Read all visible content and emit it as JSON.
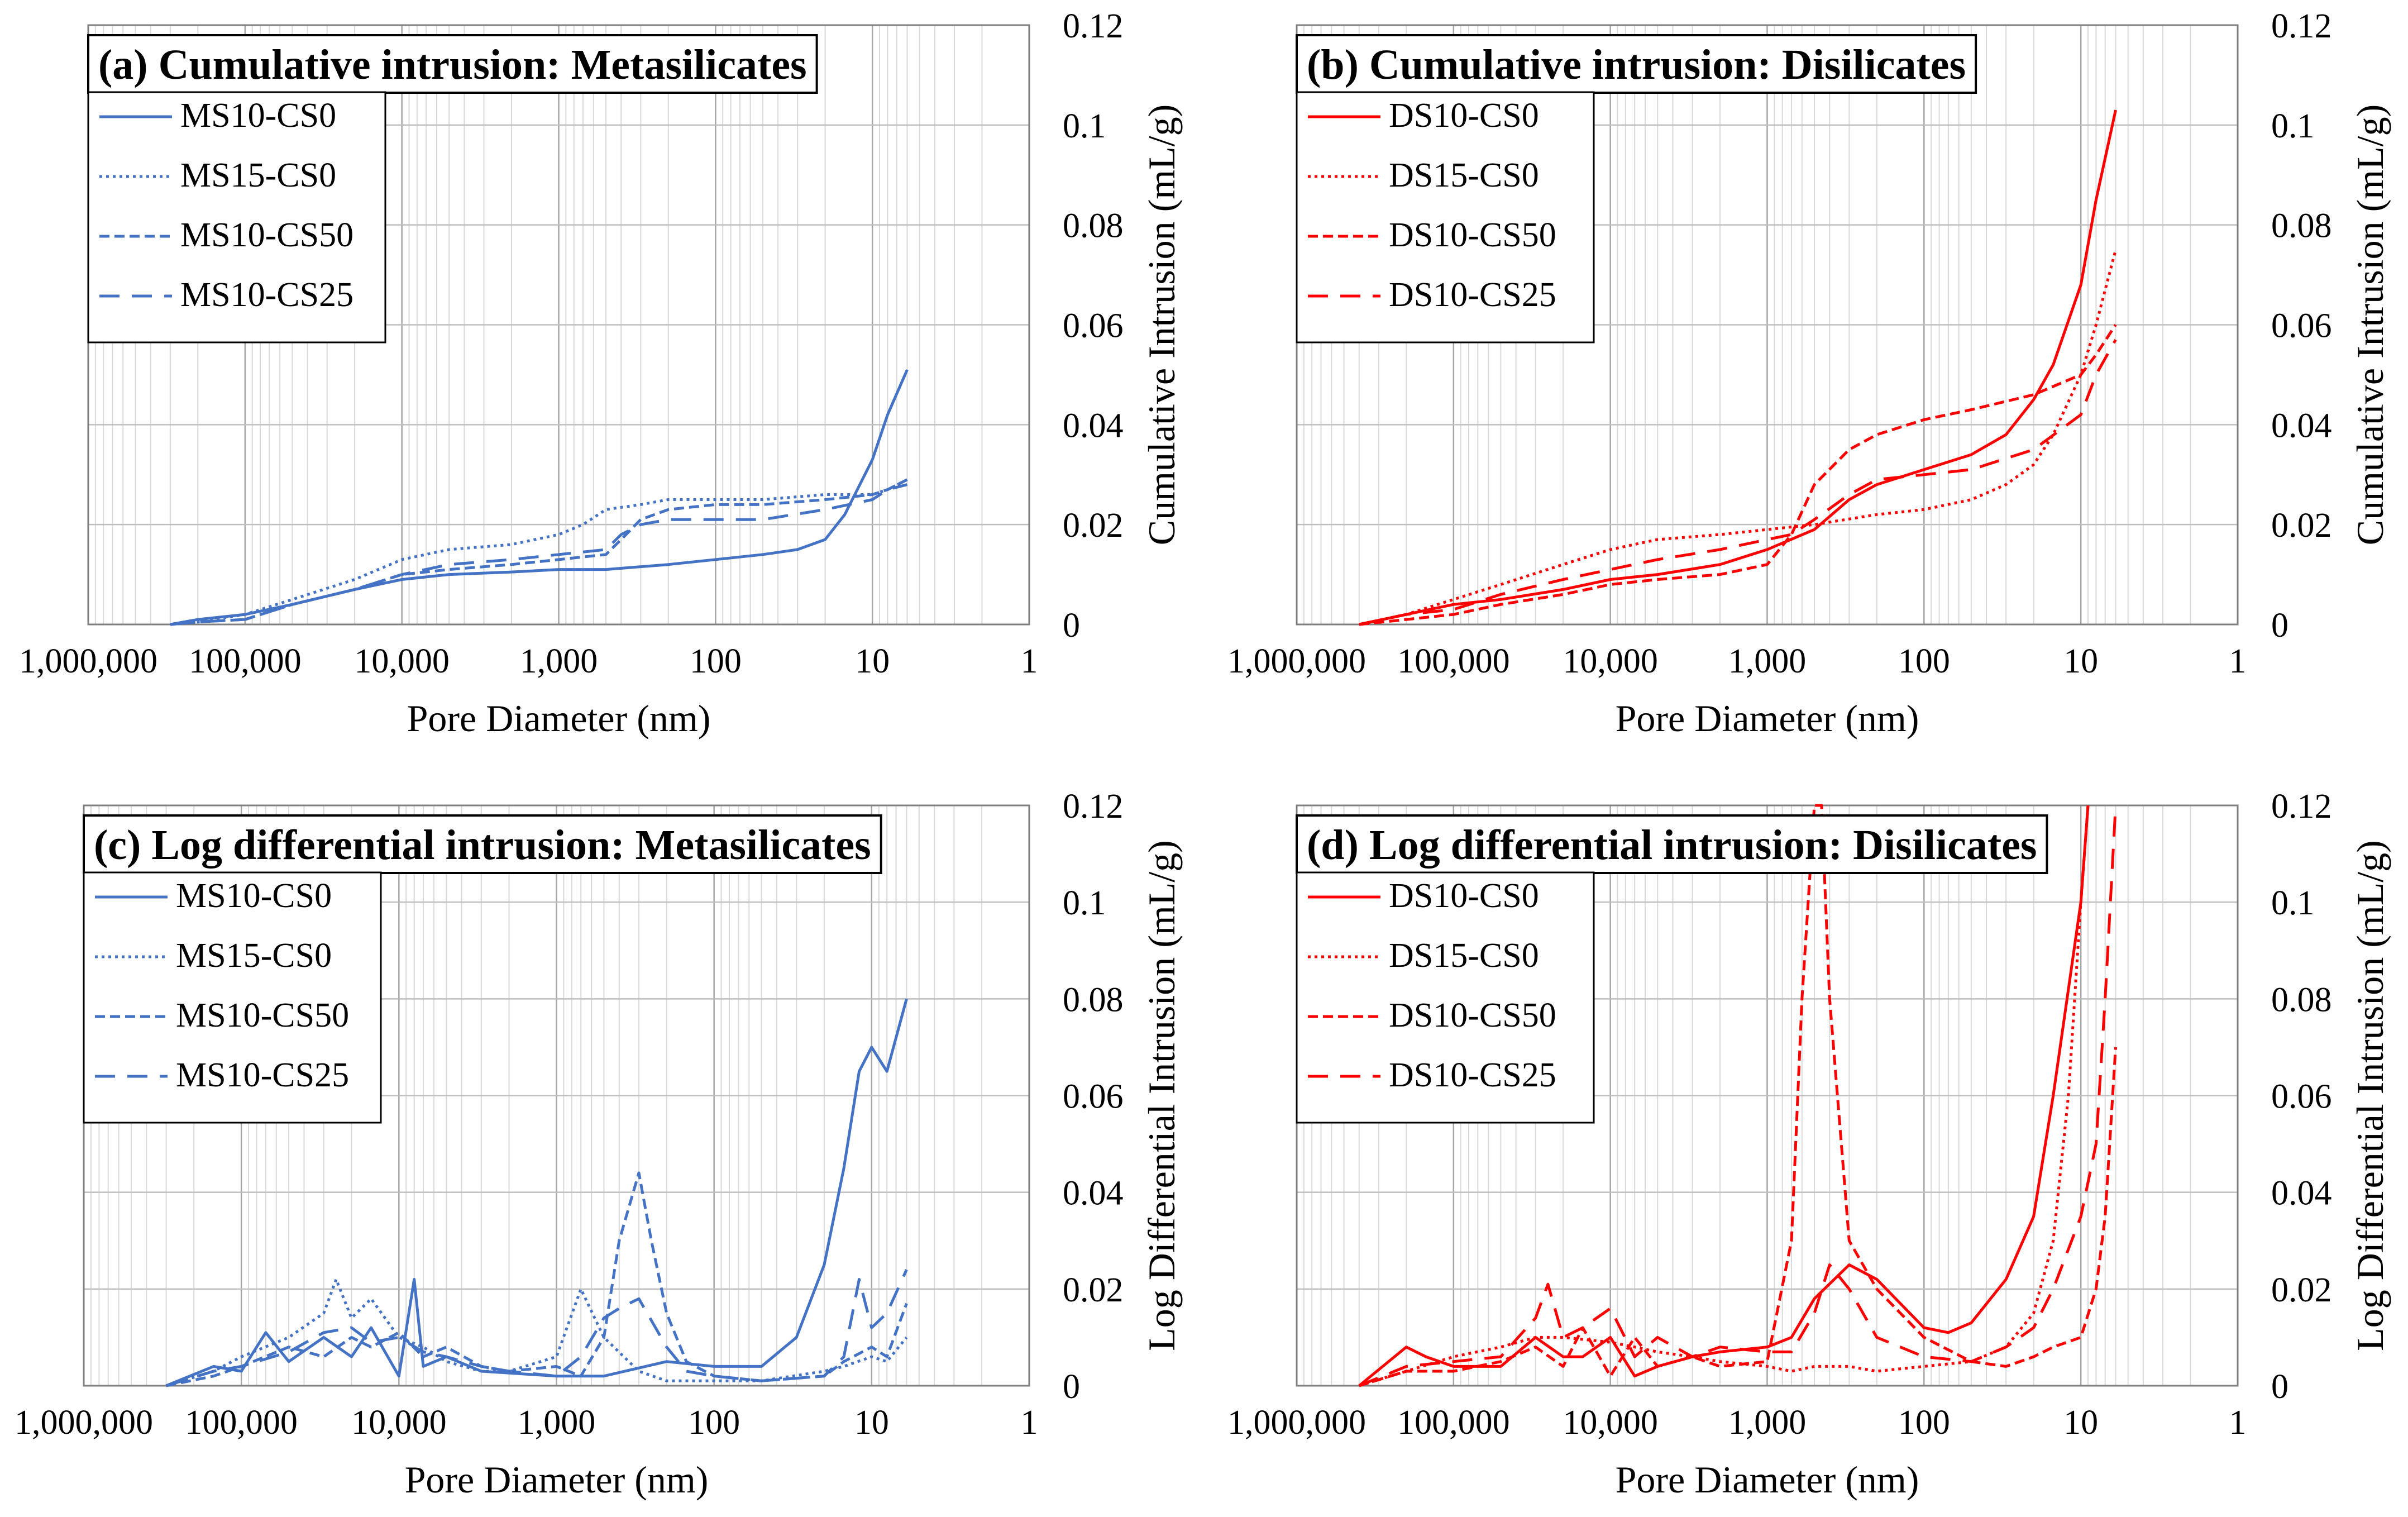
{
  "chart_data": [
    {
      "id": "a",
      "type": "line",
      "title": "(a) Cumulative intrusion: Metasilicates",
      "xlabel": "Pore Diameter  (nm)",
      "ylabel": "Cumulative Intrusion (mL/g)",
      "x_scale": "log",
      "x_reversed": true,
      "xlim": [
        1000000,
        1
      ],
      "ylim": [
        0,
        0.12
      ],
      "x_ticks": [
        1000000,
        100000,
        10000,
        1000,
        100,
        10,
        1
      ],
      "x_tick_labels": [
        "1,000,000",
        "100,000",
        "10,000",
        "1,000",
        "100",
        "10",
        "1"
      ],
      "y_ticks": [
        0,
        0.02,
        0.04,
        0.06,
        0.08,
        0.1,
        0.12
      ],
      "y_tick_labels": [
        "0",
        "0.02",
        "0.04",
        "0.06",
        "0.08",
        "0.1",
        "0.12"
      ],
      "y_axis_side": "right",
      "grid": true,
      "legend_position": "top-left",
      "color": "#4472C4",
      "series": [
        {
          "name": "MS10-CS0",
          "style": "solid",
          "x": [
            300000,
            200000,
            100000,
            50000,
            20000,
            10000,
            5000,
            2000,
            1000,
            500,
            200,
            100,
            50,
            30,
            20,
            15,
            10,
            8,
            6
          ],
          "y": [
            0,
            0.001,
            0.002,
            0.004,
            0.007,
            0.009,
            0.01,
            0.0105,
            0.011,
            0.011,
            0.012,
            0.013,
            0.014,
            0.015,
            0.017,
            0.022,
            0.033,
            0.042,
            0.051
          ]
        },
        {
          "name": "MS15-CS0",
          "style": "dotted",
          "x": [
            300000,
            200000,
            100000,
            50000,
            20000,
            10000,
            5000,
            2000,
            1000,
            700,
            500,
            300,
            200,
            100,
            50,
            20,
            10,
            8,
            6
          ],
          "y": [
            0,
            0.0005,
            0.002,
            0.005,
            0.009,
            0.013,
            0.015,
            0.016,
            0.018,
            0.02,
            0.023,
            0.024,
            0.025,
            0.025,
            0.025,
            0.026,
            0.026,
            0.027,
            0.029
          ]
        },
        {
          "name": "MS10-CS50",
          "style": "short-dash",
          "x": [
            300000,
            200000,
            100000,
            50000,
            20000,
            10000,
            5000,
            2000,
            1000,
            500,
            400,
            300,
            200,
            100,
            50,
            20,
            10,
            8,
            6
          ],
          "y": [
            0,
            0.0005,
            0.001,
            0.004,
            0.007,
            0.01,
            0.011,
            0.012,
            0.013,
            0.014,
            0.017,
            0.021,
            0.023,
            0.024,
            0.024,
            0.025,
            0.026,
            0.027,
            0.029
          ]
        },
        {
          "name": "MS10-CS25",
          "style": "long-dash",
          "x": [
            300000,
            200000,
            100000,
            50000,
            20000,
            10000,
            5000,
            2000,
            1000,
            500,
            400,
            300,
            200,
            100,
            50,
            20,
            10,
            8,
            6
          ],
          "y": [
            0,
            0.0005,
            0.001,
            0.004,
            0.007,
            0.01,
            0.012,
            0.013,
            0.014,
            0.015,
            0.018,
            0.02,
            0.021,
            0.021,
            0.021,
            0.023,
            0.025,
            0.027,
            0.028
          ]
        }
      ]
    },
    {
      "id": "b",
      "type": "line",
      "title": "(b) Cumulative intrusion: Disilicates",
      "xlabel": "Pore Diameter  (nm)",
      "ylabel": "Cumulative Intrusion (mL/g)",
      "x_scale": "log",
      "x_reversed": true,
      "xlim": [
        1000000,
        1
      ],
      "ylim": [
        0,
        0.12
      ],
      "x_ticks": [
        1000000,
        100000,
        10000,
        1000,
        100,
        10,
        1
      ],
      "x_tick_labels": [
        "1,000,000",
        "100,000",
        "10,000",
        "1,000",
        "100",
        "10",
        "1"
      ],
      "y_ticks": [
        0,
        0.02,
        0.04,
        0.06,
        0.08,
        0.1,
        0.12
      ],
      "y_tick_labels": [
        "0",
        "0.02",
        "0.04",
        "0.06",
        "0.08",
        "0.1",
        "0.12"
      ],
      "y_axis_side": "right",
      "grid": true,
      "legend_position": "top-left",
      "color": "#FF0000",
      "series": [
        {
          "name": "DS10-CS0",
          "style": "solid",
          "x": [
            400000,
            200000,
            100000,
            50000,
            20000,
            10000,
            5000,
            2000,
            1000,
            500,
            300,
            200,
            100,
            50,
            30,
            20,
            15,
            10,
            8,
            6
          ],
          "y": [
            0,
            0.002,
            0.004,
            0.005,
            0.007,
            0.009,
            0.01,
            0.012,
            0.015,
            0.019,
            0.025,
            0.028,
            0.031,
            0.034,
            0.038,
            0.045,
            0.052,
            0.068,
            0.085,
            0.103
          ]
        },
        {
          "name": "DS15-CS0",
          "style": "dotted",
          "x": [
            400000,
            200000,
            100000,
            50000,
            20000,
            10000,
            5000,
            2000,
            1000,
            500,
            200,
            100,
            50,
            30,
            20,
            15,
            10,
            8,
            6
          ],
          "y": [
            0,
            0.002,
            0.005,
            0.008,
            0.012,
            0.015,
            0.017,
            0.018,
            0.019,
            0.02,
            0.022,
            0.023,
            0.025,
            0.028,
            0.032,
            0.038,
            0.05,
            0.06,
            0.075
          ]
        },
        {
          "name": "DS10-CS50",
          "style": "short-dash",
          "x": [
            400000,
            200000,
            100000,
            50000,
            20000,
            10000,
            5000,
            2000,
            1000,
            700,
            500,
            300,
            200,
            100,
            50,
            20,
            10,
            8,
            6
          ],
          "y": [
            0,
            0.001,
            0.002,
            0.004,
            0.006,
            0.008,
            0.009,
            0.01,
            0.012,
            0.018,
            0.028,
            0.035,
            0.038,
            0.041,
            0.043,
            0.046,
            0.05,
            0.054,
            0.06
          ]
        },
        {
          "name": "DS10-CS25",
          "style": "long-dash",
          "x": [
            400000,
            200000,
            100000,
            50000,
            20000,
            10000,
            5000,
            2000,
            1000,
            700,
            500,
            300,
            200,
            100,
            50,
            20,
            10,
            8,
            6
          ],
          "y": [
            0,
            0.002,
            0.003,
            0.006,
            0.009,
            0.011,
            0.013,
            0.015,
            0.017,
            0.018,
            0.021,
            0.026,
            0.029,
            0.03,
            0.031,
            0.035,
            0.042,
            0.05,
            0.057
          ]
        }
      ]
    },
    {
      "id": "c",
      "type": "line",
      "title": "(c) Log differential intrusion: Metasilicates",
      "xlabel": "Pore Diameter  (nm)",
      "ylabel": "Log Differential Intrusion (mL/g)",
      "x_scale": "log",
      "x_reversed": true,
      "xlim": [
        1000000,
        1
      ],
      "ylim": [
        0,
        0.12
      ],
      "x_ticks": [
        1000000,
        100000,
        10000,
        1000,
        100,
        10,
        1
      ],
      "x_tick_labels": [
        "1,000,000",
        "100,000",
        "10,000",
        "1,000",
        "100",
        "10",
        "1"
      ],
      "y_ticks": [
        0,
        0.02,
        0.04,
        0.06,
        0.08,
        0.1,
        0.12
      ],
      "y_tick_labels": [
        "0",
        "0.02",
        "0.04",
        "0.06",
        "0.08",
        "0.1",
        "0.12"
      ],
      "y_axis_side": "right",
      "grid": true,
      "legend_position": "top-left",
      "color": "#4472C4",
      "series": [
        {
          "name": "MS10-CS0",
          "style": "solid",
          "x": [
            300000,
            150000,
            100000,
            70000,
            50000,
            30000,
            20000,
            15000,
            10000,
            8000,
            7000,
            5000,
            3000,
            1000,
            500,
            200,
            100,
            50,
            30,
            20,
            15,
            12,
            10,
            8,
            6
          ],
          "y": [
            0,
            0.004,
            0.003,
            0.011,
            0.005,
            0.01,
            0.006,
            0.012,
            0.002,
            0.022,
            0.004,
            0.006,
            0.003,
            0.002,
            0.002,
            0.005,
            0.004,
            0.004,
            0.01,
            0.025,
            0.045,
            0.065,
            0.07,
            0.065,
            0.08
          ]
        },
        {
          "name": "MS15-CS0",
          "style": "dotted",
          "x": [
            300000,
            150000,
            100000,
            50000,
            30000,
            25000,
            20000,
            15000,
            10000,
            7000,
            5000,
            3000,
            2000,
            1000,
            700,
            500,
            300,
            200,
            100,
            50,
            20,
            15,
            10,
            8,
            6
          ],
          "y": [
            0,
            0.003,
            0.006,
            0.01,
            0.015,
            0.022,
            0.014,
            0.018,
            0.01,
            0.008,
            0.005,
            0.003,
            0.003,
            0.006,
            0.02,
            0.01,
            0.003,
            0.001,
            0.001,
            0.001,
            0.003,
            0.004,
            0.006,
            0.005,
            0.01
          ]
        },
        {
          "name": "MS10-CS50",
          "style": "short-dash",
          "x": [
            300000,
            150000,
            100000,
            50000,
            30000,
            20000,
            15000,
            10000,
            7000,
            5000,
            3000,
            2000,
            1000,
            700,
            500,
            400,
            300,
            250,
            200,
            150,
            100,
            50,
            20,
            15,
            10,
            8,
            6
          ],
          "y": [
            0,
            0.002,
            0.004,
            0.008,
            0.006,
            0.01,
            0.008,
            0.011,
            0.006,
            0.008,
            0.004,
            0.003,
            0.004,
            0.002,
            0.01,
            0.03,
            0.044,
            0.03,
            0.015,
            0.005,
            0.002,
            0.001,
            0.002,
            0.005,
            0.008,
            0.006,
            0.017
          ]
        },
        {
          "name": "MS10-CS25",
          "style": "long-dash",
          "x": [
            300000,
            150000,
            100000,
            50000,
            30000,
            20000,
            15000,
            10000,
            7000,
            5000,
            3000,
            2000,
            1000,
            700,
            500,
            400,
            300,
            200,
            150,
            100,
            50,
            20,
            15,
            12,
            10,
            8,
            6
          ],
          "y": [
            0,
            0.003,
            0.004,
            0.007,
            0.011,
            0.012,
            0.009,
            0.01,
            0.007,
            0.006,
            0.004,
            0.003,
            0.002,
            0.006,
            0.014,
            0.016,
            0.018,
            0.008,
            0.003,
            0.002,
            0.001,
            0.002,
            0.006,
            0.022,
            0.012,
            0.015,
            0.024
          ]
        }
      ]
    },
    {
      "id": "d",
      "type": "line",
      "title": "(d) Log differential intrusion: Disilicates",
      "xlabel": "Pore Diameter  (nm)",
      "ylabel": "Log Differential Intrusion (mL/g)",
      "x_scale": "log",
      "x_reversed": true,
      "xlim": [
        1000000,
        1
      ],
      "ylim": [
        0,
        0.12
      ],
      "x_ticks": [
        1000000,
        100000,
        10000,
        1000,
        100,
        10,
        1
      ],
      "x_tick_labels": [
        "1,000,000",
        "100,000",
        "10,000",
        "1,000",
        "100",
        "10",
        "1"
      ],
      "y_ticks": [
        0,
        0.02,
        0.04,
        0.06,
        0.08,
        0.1,
        0.12
      ],
      "y_tick_labels": [
        "0",
        "0.02",
        "0.04",
        "0.06",
        "0.08",
        "0.1",
        "0.12"
      ],
      "y_axis_side": "right",
      "grid": true,
      "legend_position": "top-left",
      "color": "#FF0000",
      "series": [
        {
          "name": "DS10-CS0",
          "style": "solid",
          "x": [
            400000,
            200000,
            150000,
            100000,
            50000,
            30000,
            20000,
            15000,
            10000,
            7000,
            5000,
            3000,
            2000,
            1000,
            700,
            500,
            300,
            200,
            100,
            70,
            50,
            30,
            20,
            15,
            10,
            9
          ],
          "y": [
            0,
            0.008,
            0.006,
            0.004,
            0.004,
            0.01,
            0.006,
            0.006,
            0.01,
            0.002,
            0.004,
            0.006,
            0.007,
            0.008,
            0.01,
            0.018,
            0.025,
            0.022,
            0.012,
            0.011,
            0.013,
            0.022,
            0.035,
            0.06,
            0.1,
            0.12
          ]
        },
        {
          "name": "DS15-CS0",
          "style": "dotted",
          "x": [
            400000,
            200000,
            100000,
            50000,
            30000,
            20000,
            10000,
            7000,
            5000,
            3000,
            2000,
            1000,
            700,
            500,
            300,
            200,
            100,
            50,
            30,
            20,
            15,
            12,
            10,
            9
          ],
          "y": [
            0,
            0.003,
            0.006,
            0.008,
            0.01,
            0.01,
            0.009,
            0.008,
            0.007,
            0.006,
            0.005,
            0.004,
            0.003,
            0.004,
            0.004,
            0.003,
            0.004,
            0.005,
            0.008,
            0.015,
            0.03,
            0.06,
            0.1,
            0.12
          ]
        },
        {
          "name": "DS10-CS50",
          "style": "short-dash",
          "x": [
            400000,
            200000,
            100000,
            50000,
            30000,
            20000,
            15000,
            10000,
            7000,
            5000,
            3000,
            2000,
            1000,
            700,
            600,
            500,
            450,
            400,
            300,
            200,
            100,
            50,
            30,
            20,
            15,
            10,
            8,
            7,
            6
          ],
          "y": [
            0,
            0.003,
            0.003,
            0.005,
            0.008,
            0.004,
            0.012,
            0.002,
            0.01,
            0.004,
            0.006,
            0.004,
            0.005,
            0.03,
            0.08,
            0.12,
            0.12,
            0.08,
            0.03,
            0.02,
            0.01,
            0.005,
            0.004,
            0.006,
            0.008,
            0.01,
            0.02,
            0.035,
            0.07
          ]
        },
        {
          "name": "DS10-CS25",
          "style": "long-dash",
          "x": [
            400000,
            200000,
            100000,
            50000,
            30000,
            25000,
            20000,
            15000,
            10000,
            7000,
            5000,
            3000,
            2000,
            1000,
            700,
            500,
            400,
            300,
            200,
            100,
            50,
            30,
            20,
            15,
            10,
            8,
            7,
            6
          ],
          "y": [
            0,
            0.004,
            0.005,
            0.006,
            0.014,
            0.021,
            0.01,
            0.012,
            0.016,
            0.006,
            0.01,
            0.006,
            0.008,
            0.007,
            0.007,
            0.015,
            0.025,
            0.02,
            0.01,
            0.006,
            0.005,
            0.008,
            0.012,
            0.02,
            0.035,
            0.05,
            0.08,
            0.12
          ]
        }
      ]
    }
  ]
}
